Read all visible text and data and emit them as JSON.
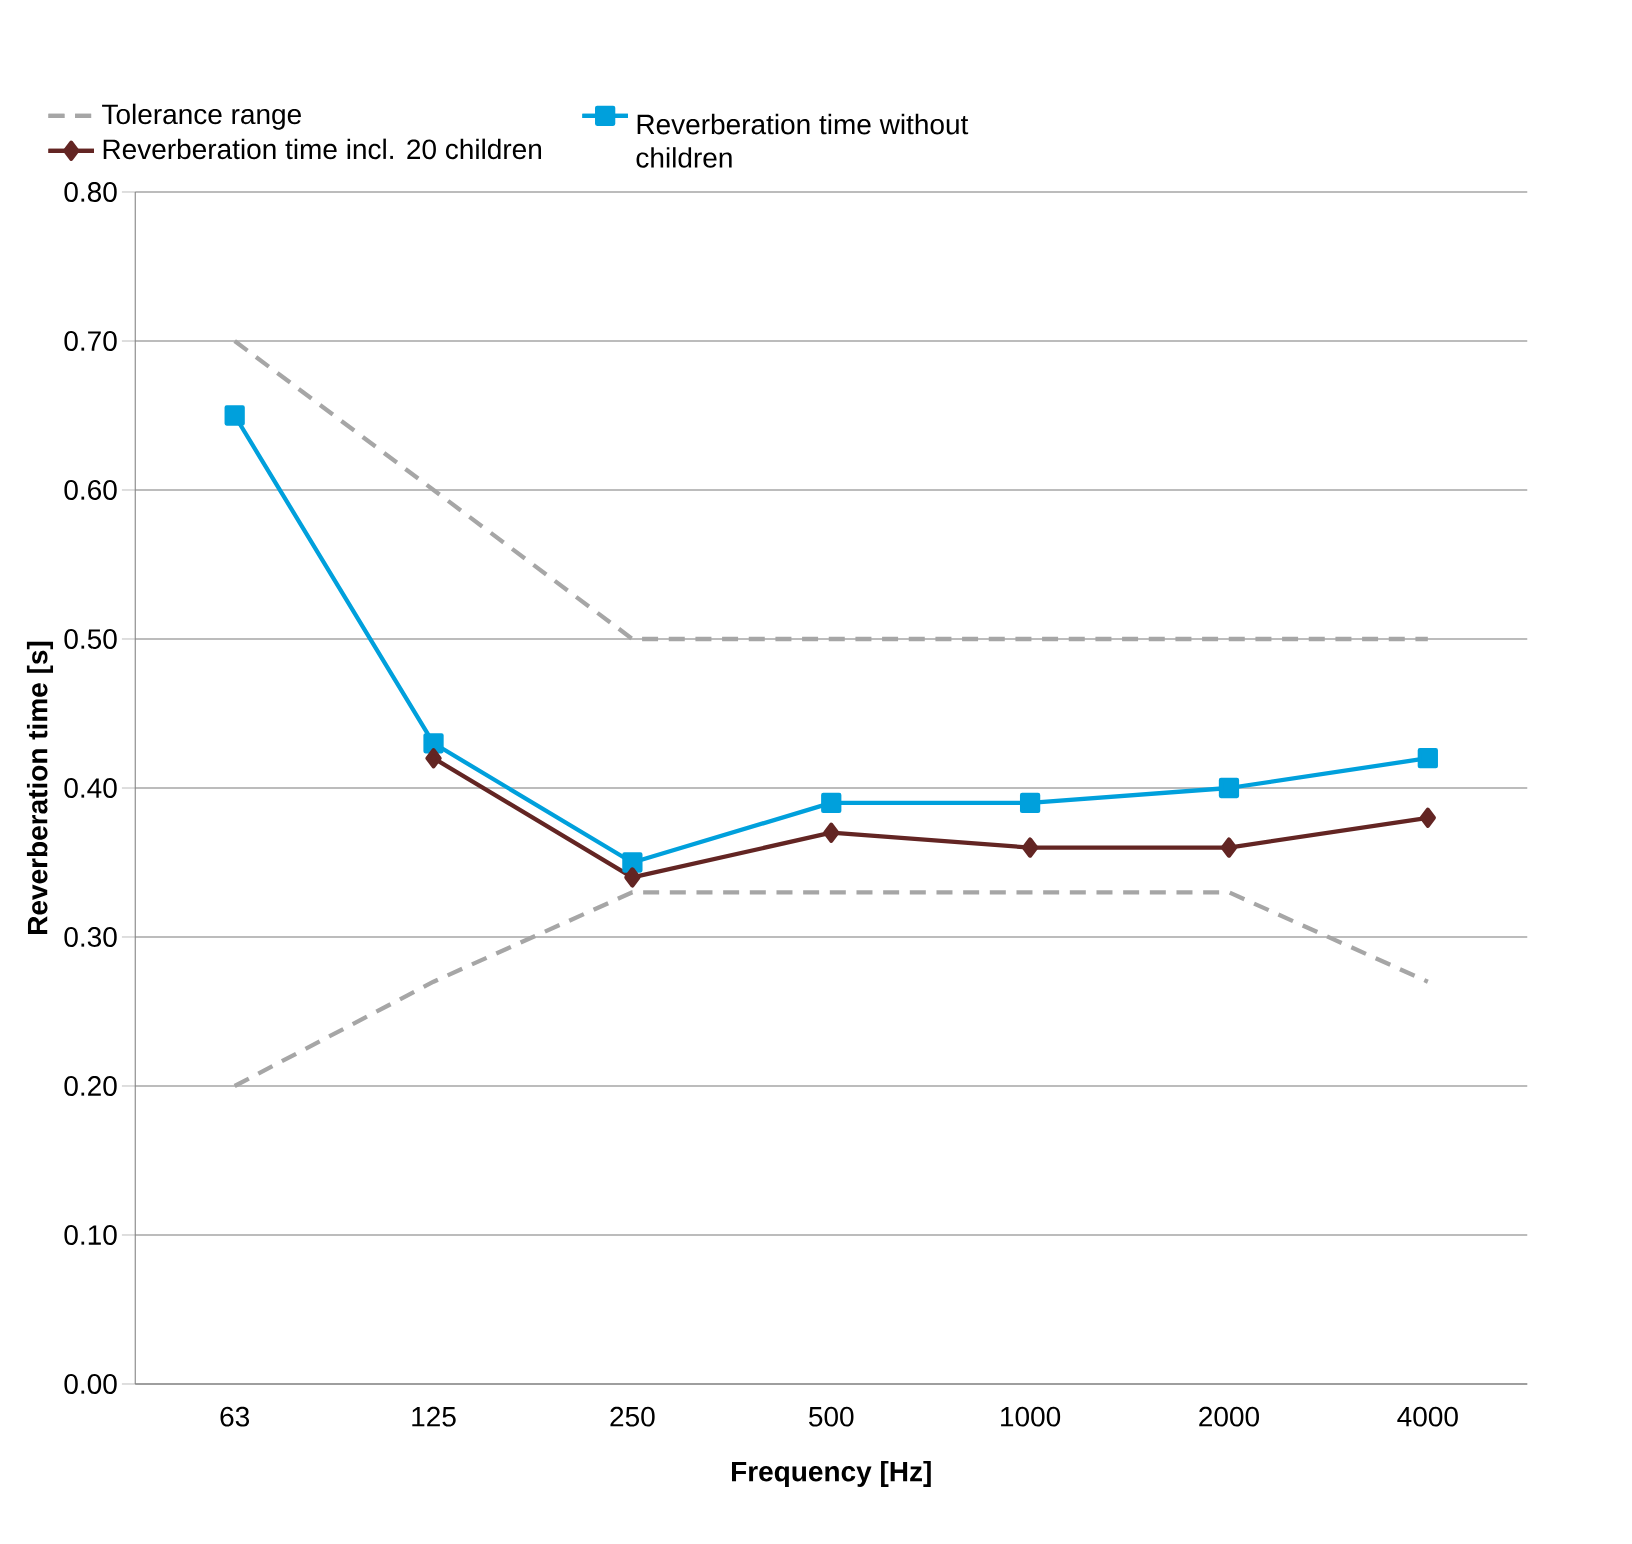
{
  "chart_data": {
    "type": "line",
    "xlabel": "Frequency [Hz]",
    "ylabel": "Reverberation time [s]",
    "categories": [
      "63",
      "125",
      "250",
      "500",
      "1000",
      "2000",
      "4000"
    ],
    "series": [
      {
        "name": "Tolerance range",
        "color": "#a6a6a6",
        "line_style": "dashed",
        "marker": "none",
        "values": [
          0.7,
          0.6,
          0.5,
          0.5,
          0.5,
          0.5,
          0.5
        ]
      },
      {
        "name": "Reverberation time without children",
        "color": "#00a0dc",
        "line_style": "solid",
        "marker": "square",
        "values": [
          0.65,
          0.43,
          0.35,
          0.39,
          0.39,
          0.4,
          0.42
        ]
      },
      {
        "name": "Reverberation time incl. 20 children",
        "color": "#632523",
        "line_style": "solid",
        "marker": "diamond",
        "values": [
          null,
          0.42,
          0.34,
          0.37,
          0.36,
          0.36,
          0.38
        ]
      },
      {
        "color": "#a6a6a6",
        "line_style": "dashed",
        "marker": "none",
        "values": [
          0.2,
          0.27,
          0.33,
          0.33,
          0.33,
          0.33,
          0.27
        ]
      }
    ],
    "ylim": [
      0,
      0.8
    ],
    "yticks": [
      {
        "value": 0,
        "label": "0.00"
      },
      {
        "value": 0.1,
        "label": "0.10"
      },
      {
        "value": 0.2,
        "label": "0.20"
      },
      {
        "value": 0.3,
        "label": "0.30"
      },
      {
        "value": 0.4,
        "label": "0.40"
      },
      {
        "value": 0.5,
        "label": "0.50"
      },
      {
        "value": 0.6,
        "label": "0.60"
      },
      {
        "value": 0.7,
        "label": "0.70"
      },
      {
        "value": 0.8,
        "label": "0.80"
      }
    ],
    "grid": "y",
    "legend": "top"
  }
}
